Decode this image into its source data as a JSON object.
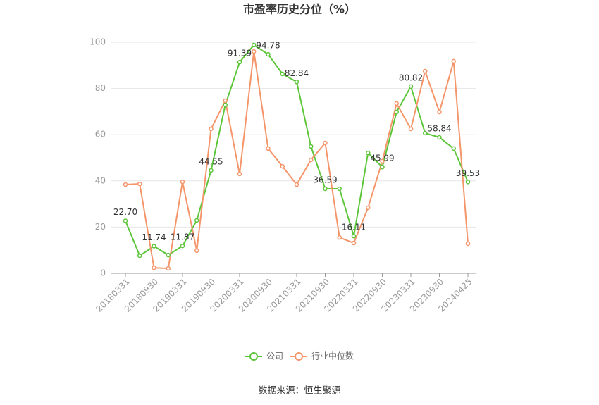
{
  "chart_data": {
    "type": "line",
    "title": "市盈率历史分位（%）",
    "source": "数据来源：恒生聚源",
    "categories": [
      "20180331",
      null,
      "20180930",
      null,
      "20190331",
      null,
      "20190930",
      null,
      "20200331",
      null,
      "20200930",
      null,
      "20210331",
      null,
      "20210930",
      null,
      "20220331",
      null,
      "20220930",
      null,
      "20230331",
      null,
      "20230930",
      null,
      "20240425"
    ],
    "series": [
      {
        "name": "公司",
        "color": "#5cc53a",
        "values": [
          22.7,
          7.6,
          11.74,
          7.9,
          11.87,
          22.9,
          44.55,
          72.9,
          91.39,
          98.8,
          94.78,
          86.3,
          82.84,
          54.9,
          36.59,
          36.6,
          16.11,
          52.1,
          45.99,
          69.8,
          80.82,
          60.7,
          58.84,
          54.0,
          39.53
        ],
        "value_labels": [
          "22.70",
          null,
          "11.74",
          null,
          "11.87",
          null,
          "44.55",
          null,
          "91.39",
          null,
          "94.78",
          null,
          "82.84",
          null,
          "36.59",
          null,
          "16.11",
          null,
          "45.99",
          null,
          "80.82",
          null,
          "58.84",
          null,
          "39.53"
        ]
      },
      {
        "name": "行业中位数",
        "color": "#f4956a",
        "values": [
          38.4,
          38.7,
          2.4,
          2.1,
          39.6,
          9.8,
          62.5,
          74.7,
          43.0,
          96.0,
          54.0,
          46.3,
          38.4,
          49.1,
          56.4,
          15.5,
          13.1,
          28.4,
          48.5,
          73.5,
          62.5,
          87.5,
          69.8,
          91.8,
          12.8
        ]
      }
    ],
    "ylim": [
      0,
      100
    ],
    "yticks": [
      0,
      20,
      40,
      60,
      80,
      100
    ],
    "grid": true,
    "legend": "bottom"
  }
}
